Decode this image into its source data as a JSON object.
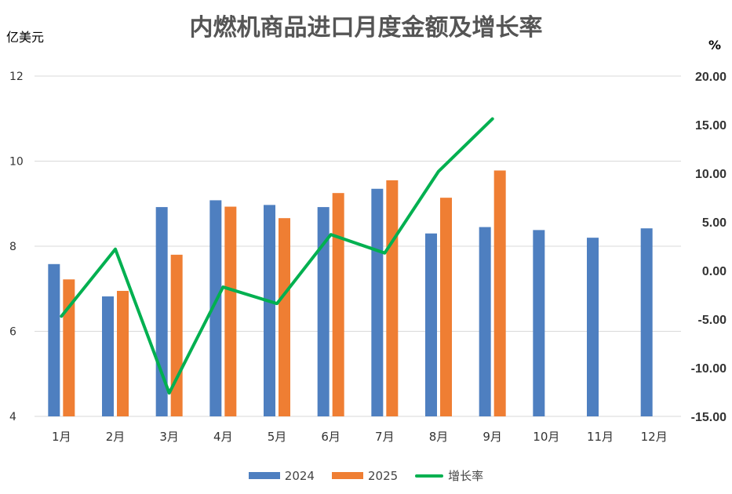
{
  "chart_data": {
    "type": "bar",
    "title": "内燃机商品进口月度金额及增长率",
    "ylabel_left": "亿美元",
    "ylabel_right": "%",
    "categories": [
      "1月",
      "2月",
      "3月",
      "4月",
      "5月",
      "6月",
      "7月",
      "8月",
      "9月",
      "10月",
      "11月",
      "12月"
    ],
    "series": [
      {
        "name": "2024",
        "type": "bar",
        "axis": "left",
        "color": "#4E7FC0",
        "values": [
          7.58,
          6.82,
          8.92,
          9.08,
          8.97,
          8.92,
          9.35,
          8.3,
          8.45,
          8.38,
          8.2,
          8.42
        ]
      },
      {
        "name": "2025",
        "type": "bar",
        "axis": "left",
        "color": "#EF7E33",
        "values": [
          7.22,
          6.95,
          7.8,
          8.93,
          8.66,
          9.25,
          9.55,
          9.14,
          9.78,
          null,
          null,
          null
        ]
      },
      {
        "name": "增长率",
        "type": "line",
        "axis": "right",
        "color": "#00B050",
        "values": [
          -4.7,
          2.2,
          -12.6,
          -1.7,
          -3.4,
          3.7,
          1.8,
          10.2,
          15.6,
          null,
          null,
          null
        ]
      }
    ],
    "ylim_left": [
      4,
      12
    ],
    "yticks_left": [
      "4",
      "6",
      "8",
      "10",
      "12"
    ],
    "ylim_right": [
      -15,
      20
    ],
    "yticks_right": [
      "-15.00",
      "-10.00",
      "-5.00",
      "0.00",
      "5.00",
      "10.00",
      "15.00",
      "20.00"
    ],
    "grid": true,
    "legend_position": "bottom"
  }
}
